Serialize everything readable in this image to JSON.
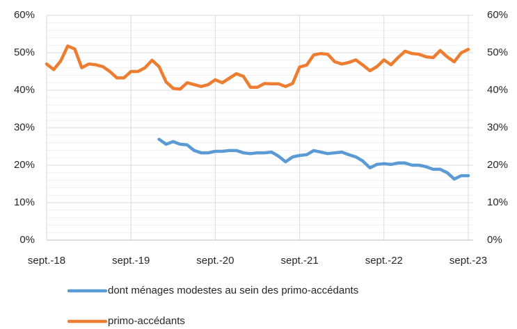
{
  "chart_data": {
    "type": "line",
    "categories": [
      "sept.-18",
      null,
      null,
      null,
      null,
      null,
      null,
      null,
      null,
      null,
      null,
      null,
      "sept.-19",
      null,
      null,
      null,
      null,
      null,
      null,
      null,
      null,
      null,
      null,
      null,
      "sept.-20",
      null,
      null,
      null,
      null,
      null,
      null,
      null,
      null,
      null,
      null,
      null,
      "sept.-21",
      null,
      null,
      null,
      null,
      null,
      null,
      null,
      null,
      null,
      null,
      null,
      "sept.-22",
      null,
      null,
      null,
      null,
      null,
      null,
      null,
      null,
      null,
      null,
      null,
      "sept.-23"
    ],
    "series": [
      {
        "name": "dont ménages modestes au sein des primo-accédants",
        "color": "#5b9bd5",
        "values": [
          null,
          null,
          null,
          null,
          null,
          null,
          null,
          null,
          null,
          null,
          null,
          null,
          null,
          null,
          null,
          null,
          26.9,
          25.6,
          26.3,
          25.6,
          25.4,
          23.9,
          23.3,
          23.3,
          23.7,
          23.7,
          23.9,
          23.9,
          23.3,
          23.1,
          23.3,
          23.3,
          23.5,
          22.4,
          20.9,
          22.2,
          22.6,
          22.8,
          23.9,
          23.5,
          23.1,
          23.3,
          23.5,
          22.8,
          22.2,
          21.1,
          19.3,
          20.2,
          20.4,
          20.2,
          20.6,
          20.6,
          20,
          20,
          19.6,
          18.9,
          18.9,
          18,
          16.3,
          17.2,
          17.2
        ]
      },
      {
        "name": "primo-accédants",
        "color": "#ed7d31",
        "values": [
          47,
          45.5,
          47.8,
          51.8,
          51,
          46,
          47,
          46.8,
          46.3,
          45,
          43.3,
          43.3,
          45,
          45,
          46,
          48,
          46.3,
          42.2,
          40.5,
          40.3,
          42,
          41.5,
          41,
          41.5,
          42.8,
          42,
          43.2,
          44.4,
          43.7,
          40.8,
          40.8,
          41.8,
          41.7,
          41.7,
          41,
          41.8,
          46.2,
          46.7,
          49.4,
          49.8,
          49.6,
          47.6,
          47,
          47.4,
          48.1,
          46.7,
          45.2,
          46.3,
          48.1,
          46.8,
          48.7,
          50.4,
          49.8,
          49.6,
          48.9,
          48.7,
          50.6,
          48.9,
          47.6,
          50,
          50.9
        ]
      }
    ],
    "ylim": [
      0,
      60
    ],
    "yticks": [
      {
        "value": 0,
        "label": "0%"
      },
      {
        "value": 10,
        "label": "10%"
      },
      {
        "value": 20,
        "label": "20%"
      },
      {
        "value": 30,
        "label": "30%"
      },
      {
        "value": 40,
        "label": "40%"
      },
      {
        "value": 50,
        "label": "50%"
      },
      {
        "value": 60,
        "label": "60%"
      }
    ],
    "y2lim": [
      0,
      60
    ],
    "y2ticks": [
      {
        "value": 0,
        "label": "0%"
      },
      {
        "value": 10,
        "label": "10%"
      },
      {
        "value": 20,
        "label": "20%"
      },
      {
        "value": 30,
        "label": "30%"
      },
      {
        "value": 40,
        "label": "40%"
      },
      {
        "value": 50,
        "label": "50%"
      },
      {
        "value": 60,
        "label": "60%"
      }
    ],
    "minor_yticks": [
      2,
      4,
      6,
      8,
      12,
      14,
      16,
      18,
      22,
      24,
      26,
      28,
      32,
      34,
      36,
      38,
      42,
      44,
      46,
      48,
      52,
      54,
      56,
      58
    ],
    "grid": true,
    "legend": "bottom"
  }
}
